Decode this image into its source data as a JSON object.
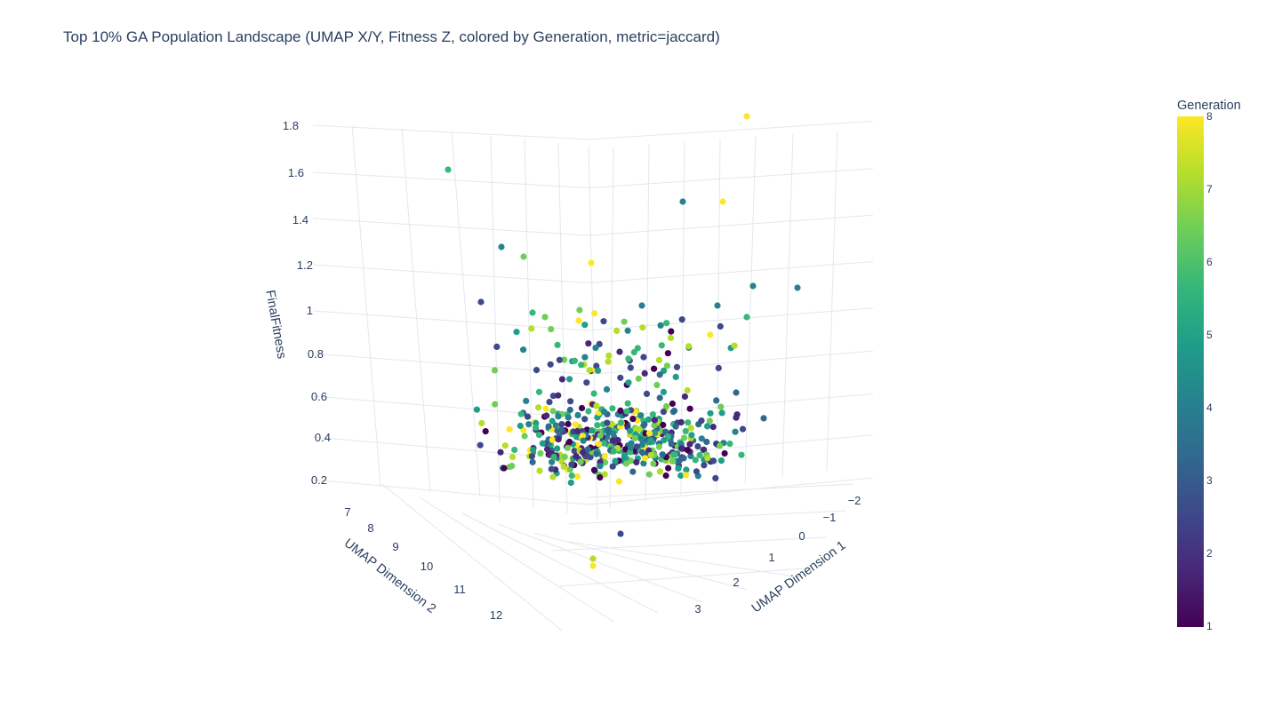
{
  "chart_data": {
    "type": "scatter",
    "title": "Top 10% GA Population Landscape (UMAP X/Y, Fitness Z, colored by Generation, metric=jaccard)",
    "axes": {
      "x": {
        "label": "UMAP Dimension 1",
        "ticks": [
          "−2",
          "−1",
          "0",
          "1",
          "2",
          "3"
        ]
      },
      "y": {
        "label": "UMAP Dimension 2",
        "ticks": [
          "7",
          "8",
          "9",
          "10",
          "11",
          "12"
        ]
      },
      "z": {
        "label": "FinalFitness",
        "ticks": [
          "0.2",
          "0.4",
          "0.6",
          "0.8",
          "1",
          "1.2",
          "1.4",
          "1.6",
          "1.8"
        ]
      }
    },
    "colorbar": {
      "title": "Generation",
      "ticks": [
        "1",
        "2",
        "3",
        "4",
        "5",
        "6",
        "7",
        "8"
      ],
      "range": [
        1,
        8
      ],
      "colorscale": "viridis",
      "colors": [
        "#440154",
        "#482878",
        "#3e4989",
        "#31688e",
        "#26828e",
        "#1f9e89",
        "#35b779",
        "#6ece58",
        "#b5de2b",
        "#fde725"
      ]
    },
    "grid": true,
    "point_count": 520
  }
}
